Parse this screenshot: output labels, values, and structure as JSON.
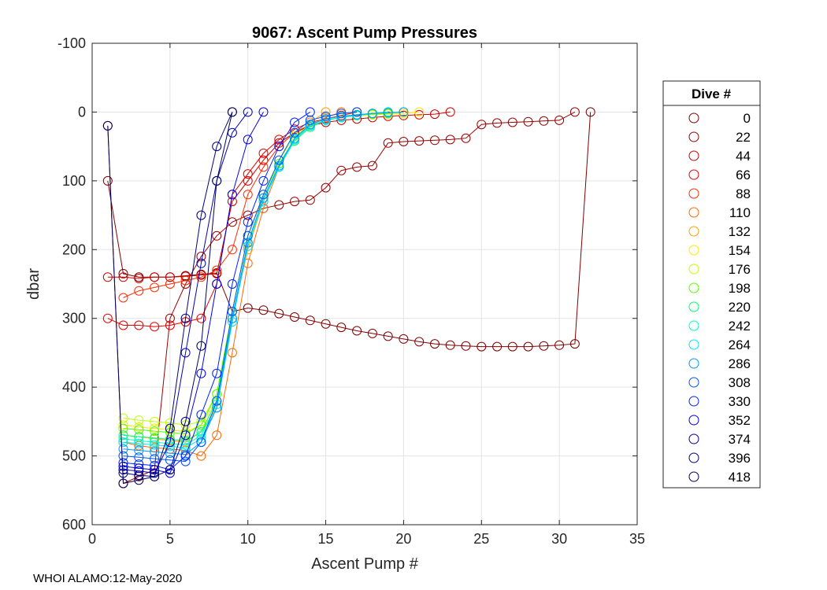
{
  "chart_data": {
    "type": "line",
    "title": "9067: Ascent Pump Pressures",
    "xlabel": "Ascent Pump #",
    "ylabel": "dbar",
    "xlim": [
      0,
      35
    ],
    "ylim": [
      -100,
      600
    ],
    "y_reversed": true,
    "xticks": [
      0,
      5,
      10,
      15,
      20,
      25,
      30,
      35
    ],
    "yticks": [
      -100,
      0,
      100,
      200,
      300,
      400,
      500,
      600
    ],
    "xtick_labels": [
      "0",
      "5",
      "10",
      "15",
      "20",
      "25",
      "30",
      "35"
    ],
    "ytick_labels": [
      "-100",
      "0",
      "100",
      "200",
      "300",
      "400",
      "500",
      "600"
    ],
    "grid": true,
    "marker": "open-circle",
    "legend_title": "Dive #",
    "legend_position": "outside-right",
    "series": [
      {
        "name": "0",
        "color": "#800000",
        "x": [
          1,
          2,
          3,
          4,
          5,
          6,
          7,
          8,
          9,
          10,
          11,
          12,
          13,
          14,
          15,
          16,
          17,
          18,
          19,
          20,
          21,
          22,
          23,
          24,
          25,
          26,
          27,
          28,
          29,
          30,
          31,
          32
        ],
        "y": [
          100,
          235,
          240,
          240,
          240,
          238,
          236,
          234,
          290,
          285,
          288,
          293,
          298,
          303,
          308,
          313,
          318,
          322,
          326,
          330,
          334,
          337,
          339,
          340,
          341,
          341,
          341,
          341,
          340,
          339,
          337,
          0
        ]
      },
      {
        "name": "22",
        "color": "#990000",
        "x": [
          1,
          2,
          3,
          4,
          5,
          6,
          7,
          8,
          9,
          10,
          11,
          12,
          13,
          14,
          15,
          16,
          17,
          18,
          19,
          20,
          21,
          22,
          23,
          24,
          25,
          26,
          27,
          28,
          29,
          30,
          31
        ],
        "y": [
          20,
          540,
          530,
          520,
          300,
          250,
          210,
          180,
          160,
          150,
          140,
          135,
          130,
          128,
          110,
          85,
          80,
          78,
          45,
          43,
          42,
          41,
          40,
          38,
          18,
          16,
          15,
          14,
          13,
          12,
          0
        ]
      },
      {
        "name": "44",
        "color": "#CC0000",
        "x": [
          1,
          2,
          3,
          4,
          5,
          6,
          7,
          8,
          9,
          10,
          11,
          12,
          13,
          14,
          15,
          16,
          17,
          18,
          19,
          20,
          21,
          22,
          23
        ],
        "y": [
          240,
          240,
          242,
          240,
          240,
          239,
          237,
          235,
          130,
          100,
          70,
          45,
          30,
          20,
          15,
          12,
          10,
          8,
          6,
          5,
          4,
          3,
          0
        ]
      },
      {
        "name": "66",
        "color": "#E60000",
        "x": [
          1,
          2,
          3,
          4,
          5,
          6,
          7,
          8,
          9,
          10,
          11,
          12,
          13,
          14,
          15,
          16,
          17
        ],
        "y": [
          300,
          310,
          310,
          312,
          310,
          305,
          300,
          250,
          120,
          90,
          60,
          40,
          25,
          15,
          10,
          5,
          0
        ]
      },
      {
        "name": "88",
        "color": "#FF2A00",
        "x": [
          2,
          3,
          4,
          5,
          6,
          7,
          8,
          9,
          10,
          11,
          12,
          13,
          14,
          15,
          16,
          17
        ],
        "y": [
          270,
          260,
          255,
          250,
          245,
          240,
          230,
          200,
          120,
          80,
          50,
          30,
          18,
          10,
          5,
          0
        ]
      },
      {
        "name": "110",
        "color": "#FF6600",
        "x": [
          2,
          3,
          4,
          5,
          6,
          7,
          8,
          9,
          10,
          11,
          12,
          13,
          14,
          15,
          16
        ],
        "y": [
          480,
          485,
          488,
          490,
          492,
          500,
          470,
          350,
          220,
          140,
          80,
          40,
          20,
          8,
          0
        ]
      },
      {
        "name": "132",
        "color": "#FFA000",
        "x": [
          2,
          3,
          4,
          5,
          6,
          7,
          8,
          9,
          10,
          11,
          12,
          13,
          14,
          15
        ],
        "y": [
          470,
          472,
          475,
          478,
          480,
          465,
          430,
          300,
          200,
          130,
          80,
          40,
          15,
          0
        ]
      },
      {
        "name": "154",
        "color": "#FFE600",
        "x": [
          2,
          3,
          4,
          5,
          6,
          7,
          8,
          9,
          10,
          11,
          12,
          13,
          14,
          15,
          16,
          17,
          18,
          19,
          20,
          21
        ],
        "y": [
          455,
          458,
          460,
          462,
          465,
          455,
          420,
          300,
          190,
          130,
          80,
          40,
          20,
          12,
          8,
          5,
          4,
          3,
          2,
          0
        ]
      },
      {
        "name": "176",
        "color": "#BFFF00",
        "x": [
          2,
          3,
          4,
          5,
          6,
          7,
          8,
          9,
          10,
          11,
          12,
          13,
          14,
          15,
          16,
          17,
          18,
          19
        ],
        "y": [
          445,
          448,
          450,
          452,
          455,
          450,
          410,
          290,
          180,
          120,
          70,
          35,
          18,
          10,
          6,
          4,
          2,
          0
        ]
      },
      {
        "name": "198",
        "color": "#55FF00",
        "x": [
          2,
          3,
          4,
          5,
          6,
          7,
          8,
          9,
          10,
          11,
          12,
          13,
          14,
          15,
          16,
          17,
          18,
          19,
          20
        ],
        "y": [
          460,
          462,
          464,
          466,
          468,
          455,
          410,
          290,
          180,
          120,
          75,
          40,
          20,
          12,
          8,
          5,
          3,
          2,
          0
        ]
      },
      {
        "name": "220",
        "color": "#00FF66",
        "x": [
          2,
          3,
          4,
          5,
          6,
          7,
          8,
          9,
          10,
          11,
          12,
          13,
          14,
          15,
          16,
          17,
          18,
          19
        ],
        "y": [
          470,
          472,
          474,
          476,
          478,
          465,
          420,
          300,
          190,
          125,
          80,
          42,
          22,
          12,
          8,
          5,
          2,
          0
        ]
      },
      {
        "name": "242",
        "color": "#00FFBF",
        "x": [
          2,
          3,
          4,
          5,
          6,
          7,
          8,
          9,
          10,
          11,
          12,
          13,
          14,
          15,
          16,
          17,
          18,
          19
        ],
        "y": [
          475,
          478,
          480,
          482,
          484,
          470,
          425,
          300,
          190,
          125,
          80,
          40,
          20,
          12,
          8,
          4,
          2,
          0
        ]
      },
      {
        "name": "264",
        "color": "#00E6FF",
        "x": [
          2,
          3,
          4,
          5,
          6,
          7,
          8,
          9,
          10,
          11,
          12,
          13,
          14,
          15,
          16,
          17,
          18,
          19
        ],
        "y": [
          480,
          482,
          484,
          486,
          488,
          475,
          430,
          305,
          195,
          130,
          80,
          40,
          20,
          12,
          8,
          4,
          2,
          0
        ]
      },
      {
        "name": "286",
        "color": "#0099FF",
        "x": [
          2,
          3,
          4,
          5,
          6,
          7,
          8,
          9,
          10,
          11,
          12,
          13,
          14,
          15,
          16,
          17,
          18,
          19,
          20
        ],
        "y": [
          490,
          492,
          494,
          496,
          498,
          480,
          430,
          300,
          190,
          125,
          78,
          38,
          18,
          10,
          6,
          4,
          2,
          1,
          0
        ]
      },
      {
        "name": "308",
        "color": "#0055FF",
        "x": [
          2,
          3,
          4,
          5,
          6,
          7,
          8,
          9,
          10,
          11,
          12,
          13,
          14,
          15,
          16,
          17
        ],
        "y": [
          500,
          502,
          504,
          506,
          508,
          480,
          420,
          290,
          180,
          120,
          70,
          30,
          12,
          6,
          2,
          0
        ]
      },
      {
        "name": "330",
        "color": "#0022FF",
        "x": [
          2,
          3,
          4,
          5,
          6,
          7,
          8,
          9,
          10,
          11,
          12,
          13,
          14
        ],
        "y": [
          510,
          512,
          514,
          520,
          500,
          440,
          380,
          250,
          160,
          100,
          50,
          15,
          0
        ]
      },
      {
        "name": "352",
        "color": "#0000E6",
        "x": [
          2,
          3,
          4,
          5,
          6,
          7,
          8,
          9,
          10,
          11
        ],
        "y": [
          515,
          518,
          520,
          525,
          470,
          380,
          250,
          120,
          40,
          0
        ]
      },
      {
        "name": "374",
        "color": "#0000B3",
        "x": [
          2,
          3,
          4,
          5,
          6,
          7,
          8,
          9,
          10
        ],
        "y": [
          520,
          522,
          525,
          480,
          350,
          220,
          100,
          30,
          0
        ]
      },
      {
        "name": "396",
        "color": "#000080",
        "x": [
          2,
          3,
          4,
          5,
          6,
          7,
          8,
          9
        ],
        "y": [
          525,
          528,
          530,
          460,
          300,
          150,
          50,
          0
        ]
      },
      {
        "name": "418",
        "color": "#000066",
        "x": [
          1,
          2,
          3,
          4,
          5,
          6,
          7,
          8,
          9
        ],
        "y": [
          20,
          540,
          535,
          530,
          520,
          450,
          340,
          100,
          0
        ]
      }
    ]
  },
  "footer_text": "WHOI ALAMO:12-May-2020"
}
